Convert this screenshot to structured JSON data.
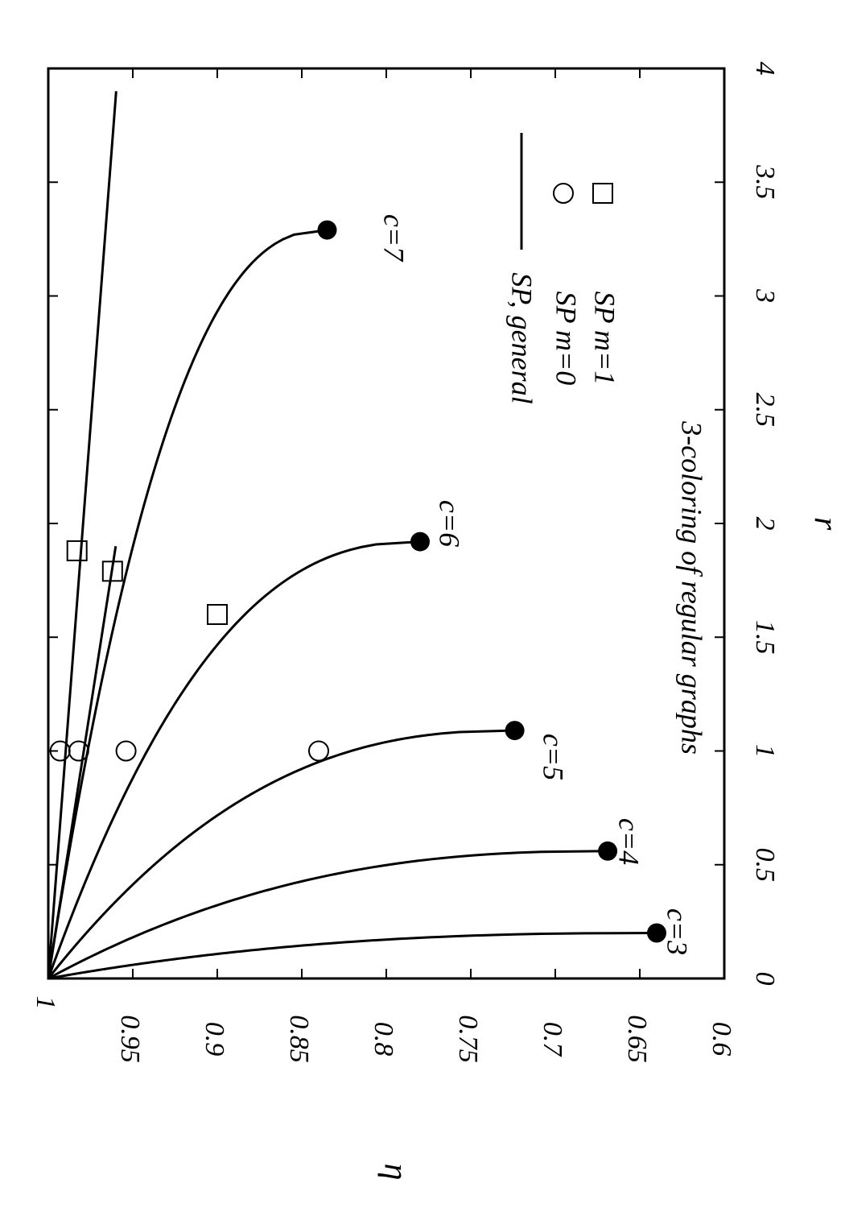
{
  "chart_data": {
    "type": "line",
    "orientation": "rotated-90-clockwise",
    "title": "3-coloring of regular graphs",
    "xlabel": "r",
    "ylabel": "η",
    "xlim": [
      0,
      4
    ],
    "ylim": [
      0.6,
      1
    ],
    "x_ticks": [
      "0",
      "0.5",
      "1",
      "1.5",
      "2",
      "2.5",
      "3",
      "3.5",
      "4"
    ],
    "y_ticks": [
      "1",
      "0.95",
      "0.9",
      "0.85",
      "0.8",
      "0.75",
      "0.7",
      "0.65",
      "0.6"
    ],
    "legend": {
      "placement": "top-right",
      "entries": [
        {
          "label": "SP, general",
          "marker": "line"
        },
        {
          "label": "SP m=0",
          "marker": "open-circle"
        },
        {
          "label": "SP m=1",
          "marker": "open-square"
        }
      ]
    },
    "series": [
      {
        "name": "c=3",
        "endpoint": {
          "r": 0.2,
          "eta": 0.64
        }
      },
      {
        "name": "c=4",
        "endpoint": {
          "r": 0.56,
          "eta": 0.669
        }
      },
      {
        "name": "c=5",
        "endpoint": {
          "r": 1.09,
          "eta": 0.724
        }
      },
      {
        "name": "c=6",
        "endpoint": {
          "r": 1.92,
          "eta": 0.78
        }
      },
      {
        "name": "c=7",
        "endpoint": {
          "r": 3.29,
          "eta": 0.835
        }
      }
    ],
    "lines": [
      {
        "slope": -0.0103,
        "r_max": 3.9
      },
      {
        "slope": -0.021,
        "r_max": 1.9
      }
    ],
    "m0_points": [
      {
        "r": 1.0,
        "eta": 0.993
      },
      {
        "r": 1.0,
        "eta": 0.982
      },
      {
        "r": 1.0,
        "eta": 0.954
      },
      {
        "r": 1.0,
        "eta": 0.84
      }
    ],
    "m1_points": [
      {
        "r": 1.88,
        "eta": 0.983
      },
      {
        "r": 1.79,
        "eta": 0.962
      },
      {
        "r": 1.6,
        "eta": 0.9
      }
    ]
  }
}
